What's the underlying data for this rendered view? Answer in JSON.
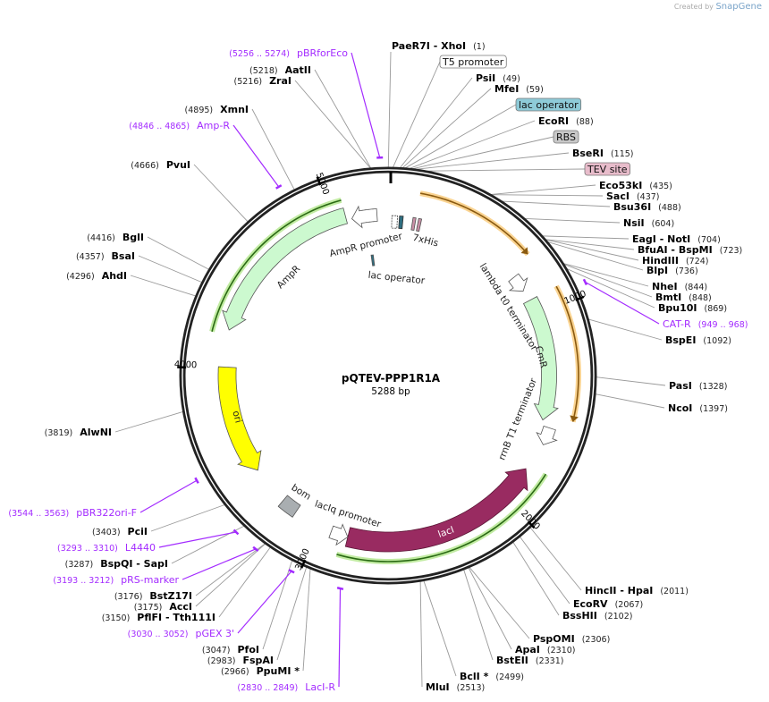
{
  "header": {
    "created_by": "Created by",
    "brand": "SnapGene"
  },
  "map": {
    "name": "pQTEV-PPP1R1A",
    "length": "5288 bp",
    "total_bp": 5288
  },
  "ticks": [
    {
      "bp": 1000,
      "label": "1000"
    },
    {
      "bp": 2000,
      "label": "2000"
    },
    {
      "bp": 3000,
      "label": "3000"
    },
    {
      "bp": 4000,
      "label": "4000"
    },
    {
      "bp": 5000,
      "label": "5000"
    }
  ],
  "sites": [
    {
      "name": "PaeR7I  - XhoI",
      "pos": "(1)",
      "bp": 1,
      "type": "enzyme"
    },
    {
      "name": "PsiI",
      "pos": "(49)",
      "bp": 49,
      "type": "enzyme"
    },
    {
      "name": "MfeI",
      "pos": "(59)",
      "bp": 59,
      "type": "enzyme"
    },
    {
      "name": "EcoRI",
      "pos": "(88)",
      "bp": 88,
      "type": "enzyme"
    },
    {
      "name": "BseRI",
      "pos": "(115)",
      "bp": 115,
      "type": "enzyme"
    },
    {
      "name": "Eco53kI",
      "pos": "(435)",
      "bp": 435,
      "type": "enzyme"
    },
    {
      "name": "SacI",
      "pos": "(437)",
      "bp": 437,
      "type": "enzyme"
    },
    {
      "name": "Bsu36I",
      "pos": "(488)",
      "bp": 488,
      "type": "enzyme"
    },
    {
      "name": "NsiI",
      "pos": "(604)",
      "bp": 604,
      "type": "enzyme"
    },
    {
      "name": "EagI  - NotI",
      "pos": "(704)",
      "bp": 704,
      "type": "enzyme"
    },
    {
      "name": "BfuAI  - BspMI",
      "pos": "(723)",
      "bp": 723,
      "type": "enzyme"
    },
    {
      "name": "HindIII",
      "pos": "(724)",
      "bp": 724,
      "type": "enzyme"
    },
    {
      "name": "BlpI",
      "pos": "(736)",
      "bp": 736,
      "type": "enzyme"
    },
    {
      "name": "NheI",
      "pos": "(844)",
      "bp": 844,
      "type": "enzyme"
    },
    {
      "name": "BmtI",
      "pos": "(848)",
      "bp": 848,
      "type": "enzyme"
    },
    {
      "name": "Bpu10I",
      "pos": "(869)",
      "bp": 869,
      "type": "enzyme"
    },
    {
      "name": "CAT-R",
      "pos": "(949 .. 968)",
      "bp": 949,
      "type": "primer"
    },
    {
      "name": "BspEI",
      "pos": "(1092)",
      "bp": 1092,
      "type": "enzyme"
    },
    {
      "name": "PasI",
      "pos": "(1328)",
      "bp": 1328,
      "type": "enzyme"
    },
    {
      "name": "NcoI",
      "pos": "(1397)",
      "bp": 1397,
      "type": "enzyme"
    },
    {
      "name": "HincII  - HpaI",
      "pos": "(2011)",
      "bp": 2011,
      "type": "enzyme"
    },
    {
      "name": "EcoRV",
      "pos": "(2067)",
      "bp": 2067,
      "type": "enzyme"
    },
    {
      "name": "BssHII",
      "pos": "(2102)",
      "bp": 2102,
      "type": "enzyme"
    },
    {
      "name": "PspOMI",
      "pos": "(2306)",
      "bp": 2306,
      "type": "enzyme"
    },
    {
      "name": "ApaI",
      "pos": "(2310)",
      "bp": 2310,
      "type": "enzyme"
    },
    {
      "name": "BstEII",
      "pos": "(2331)",
      "bp": 2331,
      "type": "enzyme"
    },
    {
      "name": "BclI *",
      "pos": "(2499)",
      "bp": 2499,
      "type": "enzyme"
    },
    {
      "name": "MluI",
      "pos": "(2513)",
      "bp": 2513,
      "type": "enzyme"
    },
    {
      "name": "LacI-R",
      "pos": "(2830 .. 2849)",
      "bp": 2830,
      "type": "primer"
    },
    {
      "name": "PpuMI *",
      "pos": "(2966)",
      "bp": 2966,
      "type": "enzyme"
    },
    {
      "name": "FspAI",
      "pos": "(2983)",
      "bp": 2983,
      "type": "enzyme"
    },
    {
      "name": "PfoI",
      "pos": "(3047)",
      "bp": 3047,
      "type": "enzyme"
    },
    {
      "name": "pGEX 3'",
      "pos": "(3030 .. 3052)",
      "bp": 3030,
      "type": "primer"
    },
    {
      "name": "PflFI  - Tth111I",
      "pos": "(3150)",
      "bp": 3150,
      "type": "enzyme"
    },
    {
      "name": "AccI",
      "pos": "(3175)",
      "bp": 3175,
      "type": "enzyme"
    },
    {
      "name": "BstZ17I",
      "pos": "(3176)",
      "bp": 3176,
      "type": "enzyme"
    },
    {
      "name": "pRS-marker",
      "pos": "(3193 .. 3212)",
      "bp": 3193,
      "type": "primer"
    },
    {
      "name": "BspQI  - SapI",
      "pos": "(3287)",
      "bp": 3287,
      "type": "enzyme"
    },
    {
      "name": "L4440",
      "pos": "(3293 .. 3310)",
      "bp": 3293,
      "type": "primer"
    },
    {
      "name": "PciI",
      "pos": "(3403)",
      "bp": 3403,
      "type": "enzyme"
    },
    {
      "name": "pBR322ori-F",
      "pos": "(3544 .. 3563)",
      "bp": 3544,
      "type": "primer"
    },
    {
      "name": "AlwNI",
      "pos": "(3819)",
      "bp": 3819,
      "type": "enzyme"
    },
    {
      "name": "AhdI",
      "pos": "(4296)",
      "bp": 4296,
      "type": "enzyme"
    },
    {
      "name": "BsaI",
      "pos": "(4357)",
      "bp": 4357,
      "type": "enzyme"
    },
    {
      "name": "BglI",
      "pos": "(4416)",
      "bp": 4416,
      "type": "enzyme"
    },
    {
      "name": "PvuI",
      "pos": "(4666)",
      "bp": 4666,
      "type": "enzyme"
    },
    {
      "name": "Amp-R",
      "pos": "(4846 .. 4865)",
      "bp": 4846,
      "type": "primer"
    },
    {
      "name": "XmnI",
      "pos": "(4895)",
      "bp": 4895,
      "type": "enzyme"
    },
    {
      "name": "ZraI",
      "pos": "(5216)",
      "bp": 5216,
      "type": "enzyme"
    },
    {
      "name": "AatII",
      "pos": "(5218)",
      "bp": 5218,
      "type": "enzyme"
    },
    {
      "name": "pBRforEco",
      "pos": "(5256 .. 5274)",
      "bp": 5256,
      "type": "primer"
    }
  ],
  "boxed_features": [
    {
      "label": "T5 promoter",
      "bp": 20,
      "color": "#ffffff"
    },
    {
      "label": "lac operator",
      "bp": 70,
      "color": "#8ecbd8"
    },
    {
      "label": "RBS",
      "bp": 100,
      "color": "#c8c8c8"
    },
    {
      "label": "TEV site",
      "bp": 160,
      "color": "#e8bccb"
    }
  ],
  "features": [
    {
      "label": "AmpR",
      "start": 5068,
      "end": 4201,
      "kind": "arrow",
      "color": "#ccf9cf"
    },
    {
      "label": "ori",
      "start": 4010,
      "end": 3437,
      "kind": "arrow",
      "color": "#ffff00"
    },
    {
      "label": "bom",
      "start": 3232,
      "end": 3144,
      "kind": "block",
      "color": "#a9aeb1"
    },
    {
      "label": "lacI",
      "start": 2850,
      "end": 1822,
      "kind": "arrow",
      "color": "#992b61"
    },
    {
      "label": "CmR",
      "start": 911,
      "end": 1557,
      "kind": "arrow",
      "color": "#ccf9cf"
    },
    {
      "label": "AmpR promoter",
      "start": 5230,
      "end": 5097,
      "kind": "small",
      "color": "#ffffff"
    },
    {
      "label": "lambda t0 terminator",
      "start": 764,
      "end": 852,
      "kind": "small",
      "color": "#ffffff"
    },
    {
      "label": "rrnB T1 terminator",
      "start": 1586,
      "end": 1675,
      "kind": "small",
      "color": "#ffffff"
    },
    {
      "label": "lacIq promoter",
      "start": 2938,
      "end": 2850,
      "kind": "small",
      "color": "#ffffff"
    },
    {
      "label": "lac operator",
      "start": 5170,
      "end": 5185,
      "kind": "tiny",
      "color": "#2f6e80"
    },
    {
      "label": "7xHis",
      "start": 130,
      "end": 200,
      "kind": "tiny",
      "color": "#c98fa6"
    }
  ],
  "orfs": [
    {
      "start": 147,
      "end": 720,
      "color": "#f7b84a"
    },
    {
      "start": 911,
      "end": 1528,
      "color": "#f7b84a"
    }
  ],
  "highlights": [
    {
      "start": 5068,
      "end": 4172,
      "color": "#a6e37a"
    },
    {
      "start": 2880,
      "end": 1792,
      "color": "#a6e37a"
    }
  ]
}
